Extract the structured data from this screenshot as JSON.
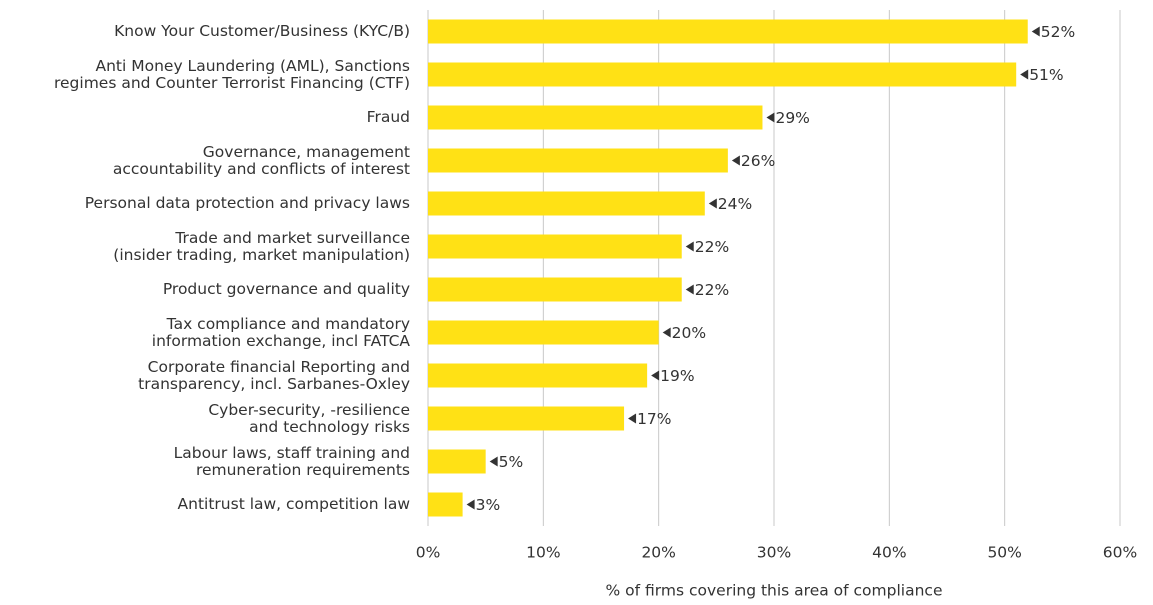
{
  "chart_data": {
    "type": "bar",
    "orientation": "horizontal",
    "categories": [
      "Know Your Customer/Business (KYC/B)",
      "Anti Money Laundering (AML), Sanctions\nregimes and Counter Terrorist Financing (CTF)",
      "Fraud",
      "Governance, management\naccountability and conflicts of interest",
      "Personal data protection and privacy laws",
      "Trade and market surveillance\n(insider trading, market manipulation)",
      "Product governance and quality",
      "Tax compliance and mandatory\ninformation exchange, incl FATCA",
      "Corporate financial Reporting and\ntransparency, incl. Sarbanes-Oxley",
      "Cyber-security, -resilience\nand technology risks",
      "Labour laws, staff training and\nremuneration requirements",
      "Antitrust law, competition law"
    ],
    "values": [
      52,
      51,
      29,
      26,
      24,
      22,
      22,
      20,
      19,
      17,
      5,
      3
    ],
    "value_labels": [
      "52%",
      "51%",
      "29%",
      "26%",
      "24%",
      "22%",
      "22%",
      "20%",
      "19%",
      "17%",
      "5%",
      "3%"
    ],
    "color": "#ffe115",
    "xlim": [
      0,
      60
    ],
    "xticks": [
      {
        "value": 0,
        "label": "0%"
      },
      {
        "value": 10,
        "label": "10%"
      },
      {
        "value": 20,
        "label": "20%"
      },
      {
        "value": 30,
        "label": "30%"
      },
      {
        "value": 40,
        "label": "40%"
      },
      {
        "value": 50,
        "label": "50%"
      },
      {
        "value": 60,
        "label": "60%"
      }
    ],
    "x_label": "% of firms covering this area of compliance",
    "grid": true
  }
}
